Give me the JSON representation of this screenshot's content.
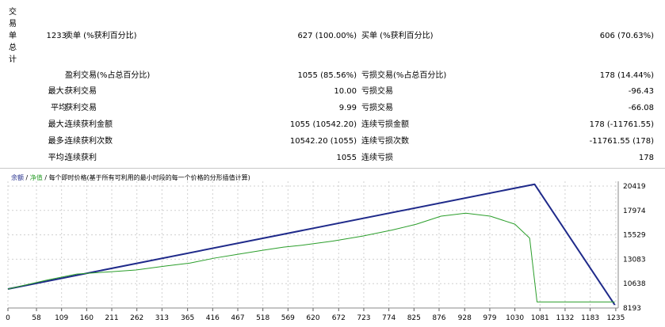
{
  "side_label": [
    "交",
    "易",
    "单",
    "总",
    "计"
  ],
  "report_rows": [
    {
      "c1": "1233",
      "c2": "卖单 (%获利百分比)",
      "c3": "627 (100.00%)",
      "c4": "买单 (%获利百分比)",
      "c5": "606 (70.63%)"
    },
    {
      "c1": "",
      "c2": "盈利交易(%占总百分比)",
      "c3": "1055 (85.56%)",
      "c4": "亏损交易(%占总百分比)",
      "c5": "178 (14.44%)"
    },
    {
      "c1": "最大:",
      "c2": "获利交易",
      "c3": "10.00",
      "c4": "亏损交易",
      "c5": "-96.43"
    },
    {
      "c1": "平均",
      "c2": "获利交易",
      "c3": "9.99",
      "c4": "亏损交易",
      "c5": "-66.08"
    },
    {
      "c1": "最大:",
      "c2": "连续获利金额",
      "c3": "1055 (10542.20)",
      "c4": "连续亏损金额",
      "c5": "178 (-11761.55)"
    },
    {
      "c1": "最多:",
      "c2": "连续获利次数",
      "c3": "10542.20 (1055)",
      "c4": "连续亏损次数",
      "c5": "-11761.55 (178)"
    },
    {
      "c1": "平均:",
      "c2": "连续获利",
      "c3": "1055",
      "c4": "连续亏损",
      "c5": "178"
    }
  ],
  "legend": {
    "balance": "余额",
    "sep1": " / ",
    "equity": "净值",
    "sep2": " / ",
    "desc": "每个即时价格(基于所有可利用的最小时段的每一个价格的分形插值计算)"
  },
  "colors": {
    "balance": "#1f2a8a",
    "equity": "#2b9e2b",
    "grid": "#d0d0d0"
  },
  "chart_data": {
    "type": "line",
    "x_ticks": [
      "0",
      "58",
      "109",
      "160",
      "211",
      "262",
      "313",
      "365",
      "416",
      "467",
      "518",
      "569",
      "620",
      "672",
      "723",
      "774",
      "825",
      "876",
      "928",
      "979",
      "1030",
      "1081",
      "1132",
      "1183",
      "1235"
    ],
    "y_ticks": [
      "20419",
      "17974",
      "15529",
      "13083",
      "10638",
      "8193"
    ],
    "xlim": [
      0,
      1240
    ],
    "ylim": [
      8193,
      20419
    ],
    "series": [
      {
        "name": "余额",
        "points": [
          [
            0,
            10100
          ],
          [
            1070,
            20600
          ],
          [
            1233,
            8500
          ]
        ]
      },
      {
        "name": "净值",
        "points": [
          [
            0,
            10100
          ],
          [
            80,
            11000
          ],
          [
            140,
            11600
          ],
          [
            200,
            11800
          ],
          [
            260,
            12000
          ],
          [
            320,
            12400
          ],
          [
            370,
            12700
          ],
          [
            420,
            13200
          ],
          [
            470,
            13600
          ],
          [
            520,
            14000
          ],
          [
            560,
            14300
          ],
          [
            600,
            14500
          ],
          [
            660,
            14900
          ],
          [
            720,
            15400
          ],
          [
            780,
            16000
          ],
          [
            830,
            16600
          ],
          [
            880,
            17400
          ],
          [
            930,
            17700
          ],
          [
            980,
            17400
          ],
          [
            1030,
            16600
          ],
          [
            1060,
            15200
          ],
          [
            1075,
            8800
          ],
          [
            1233,
            8800
          ]
        ]
      }
    ]
  }
}
